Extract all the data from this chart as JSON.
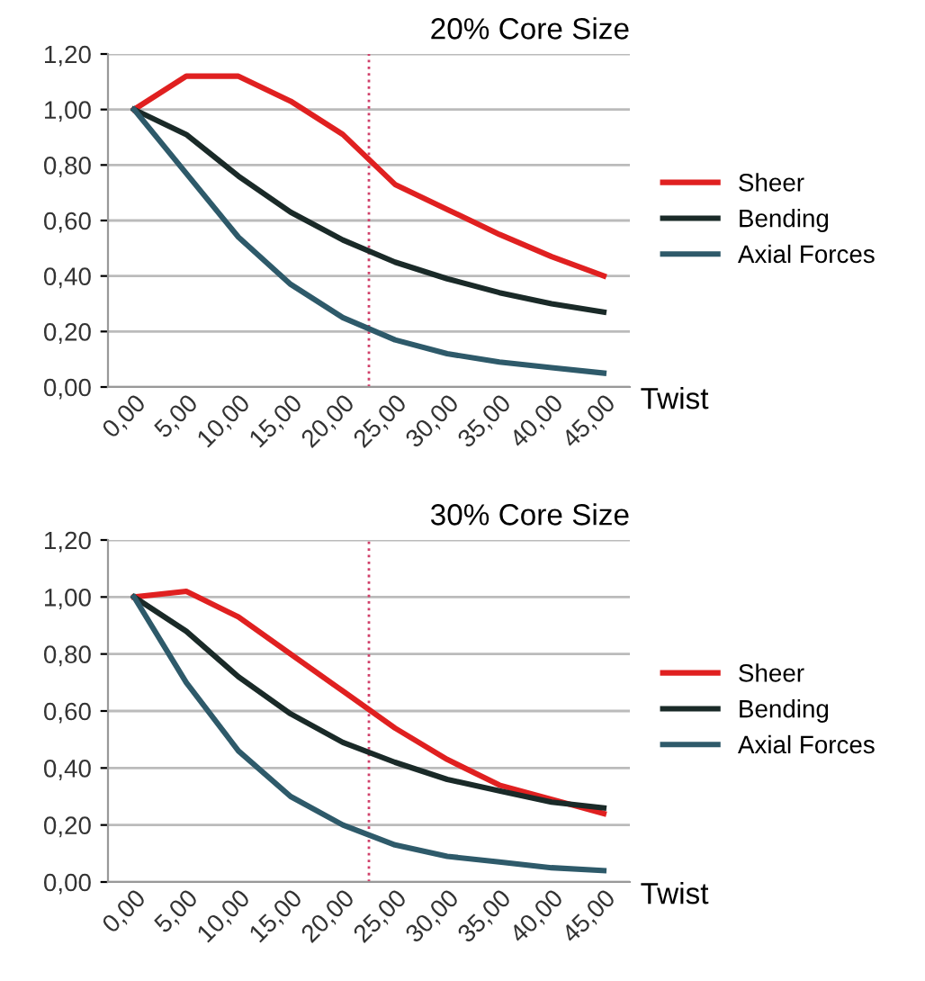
{
  "chart_data": [
    {
      "type": "line",
      "title": "20% Core Size",
      "xlabel": "Twist",
      "x": [
        0,
        5,
        10,
        15,
        20,
        25,
        30,
        35,
        40,
        45
      ],
      "xlim": [
        -2.5,
        47.5
      ],
      "xticks": [
        {
          "value": 0,
          "label": "0,00"
        },
        {
          "value": 5,
          "label": "5,00"
        },
        {
          "value": 10,
          "label": "10,00"
        },
        {
          "value": 15,
          "label": "15,00"
        },
        {
          "value": 20,
          "label": "20,00"
        },
        {
          "value": 25,
          "label": "25,00"
        },
        {
          "value": 30,
          "label": "30,00"
        },
        {
          "value": 35,
          "label": "35,00"
        },
        {
          "value": 40,
          "label": "40,00"
        },
        {
          "value": 45,
          "label": "45,00"
        }
      ],
      "ylim": [
        0,
        1.2
      ],
      "yticks": [
        {
          "value": 0,
          "label": "0,00"
        },
        {
          "value": 0.2,
          "label": "0,20"
        },
        {
          "value": 0.4,
          "label": "0,40"
        },
        {
          "value": 0.6,
          "label": "0,60"
        },
        {
          "value": 0.8,
          "label": "0,80"
        },
        {
          "value": 1.0,
          "label": "1,00"
        },
        {
          "value": 1.2,
          "label": "1,20"
        }
      ],
      "grid": "y",
      "legend": "right",
      "line_style": "solid",
      "marker": "none",
      "ref_lines": [
        {
          "axis": "x",
          "value": 22.5,
          "color": "#d0406a",
          "line_style": "dotted"
        }
      ],
      "series": [
        {
          "name": "Sheer",
          "color": "#e02020",
          "values": [
            1.0,
            1.12,
            1.12,
            1.03,
            0.91,
            0.73,
            0.64,
            0.55,
            0.47,
            0.4
          ]
        },
        {
          "name": "Bending",
          "color": "#1a2a28",
          "values": [
            1.0,
            0.91,
            0.76,
            0.63,
            0.53,
            0.45,
            0.39,
            0.34,
            0.3,
            0.27
          ]
        },
        {
          "name": "Axial Forces",
          "color": "#2e5a6a",
          "values": [
            1.0,
            0.77,
            0.54,
            0.37,
            0.25,
            0.17,
            0.12,
            0.09,
            0.07,
            0.05
          ]
        }
      ]
    },
    {
      "type": "line",
      "title": "30% Core Size",
      "xlabel": "Twist",
      "x": [
        0,
        5,
        10,
        15,
        20,
        25,
        30,
        35,
        40,
        45
      ],
      "xlim": [
        -2.5,
        47.5
      ],
      "xticks": [
        {
          "value": 0,
          "label": "0,00"
        },
        {
          "value": 5,
          "label": "5,00"
        },
        {
          "value": 10,
          "label": "10,00"
        },
        {
          "value": 15,
          "label": "15,00"
        },
        {
          "value": 20,
          "label": "20,00"
        },
        {
          "value": 25,
          "label": "25,00"
        },
        {
          "value": 30,
          "label": "30,00"
        },
        {
          "value": 35,
          "label": "35,00"
        },
        {
          "value": 40,
          "label": "40,00"
        },
        {
          "value": 45,
          "label": "45,00"
        }
      ],
      "ylim": [
        0,
        1.2
      ],
      "yticks": [
        {
          "value": 0,
          "label": "0,00"
        },
        {
          "value": 0.2,
          "label": "0,20"
        },
        {
          "value": 0.4,
          "label": "0,40"
        },
        {
          "value": 0.6,
          "label": "0,60"
        },
        {
          "value": 0.8,
          "label": "0,80"
        },
        {
          "value": 1.0,
          "label": "1,00"
        },
        {
          "value": 1.2,
          "label": "1,20"
        }
      ],
      "grid": "y",
      "legend": "right",
      "line_style": "solid",
      "marker": "none",
      "ref_lines": [
        {
          "axis": "x",
          "value": 22.5,
          "color": "#d0406a",
          "line_style": "dotted"
        }
      ],
      "series": [
        {
          "name": "Sheer",
          "color": "#e02020",
          "values": [
            1.0,
            1.02,
            0.93,
            0.8,
            0.67,
            0.54,
            0.43,
            0.34,
            0.29,
            0.24
          ]
        },
        {
          "name": "Bending",
          "color": "#1a2a28",
          "values": [
            1.0,
            0.88,
            0.72,
            0.59,
            0.49,
            0.42,
            0.36,
            0.32,
            0.28,
            0.26
          ]
        },
        {
          "name": "Axial Forces",
          "color": "#2e5a6a",
          "values": [
            1.0,
            0.7,
            0.46,
            0.3,
            0.2,
            0.13,
            0.09,
            0.07,
            0.05,
            0.04
          ]
        }
      ]
    }
  ]
}
